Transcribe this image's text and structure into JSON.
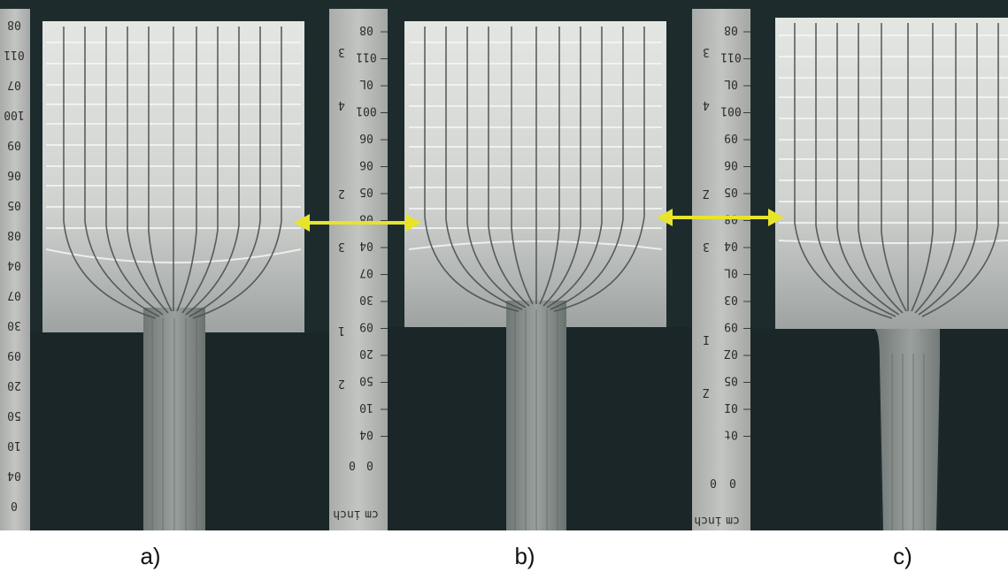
{
  "panels": [
    {
      "id": "a",
      "caption": "a)"
    },
    {
      "id": "b",
      "caption": "b)"
    },
    {
      "id": "c",
      "caption": "c)"
    }
  ],
  "rulers": {
    "left_edge": [
      "08",
      "011",
      "07",
      "100",
      "09",
      "06",
      "05",
      "08",
      "04",
      "07",
      "30",
      "09",
      "20",
      "50",
      "10",
      "04",
      "0"
    ],
    "middle": {
      "marks": [
        "08",
        "011",
        "0L",
        "001",
        "06",
        "06",
        "05",
        "08",
        "04",
        "07",
        "30",
        "09",
        "20",
        "50",
        "10",
        "04"
      ],
      "inch_marks": [
        "3",
        "4",
        "2",
        "3",
        "1",
        "2"
      ],
      "bottom_left": "0",
      "bottom_right": "0",
      "unit_left": "inch",
      "unit_right": "cm"
    },
    "right": {
      "marks": [
        "08",
        "011",
        "0L",
        "001",
        "09",
        "06",
        "05",
        "08",
        "04",
        "0L",
        "03",
        "09",
        "0Z",
        "05",
        "0I",
        "0t"
      ],
      "inch_marks": [
        "3",
        "4",
        "Z",
        "3",
        "I",
        "Z"
      ],
      "bottom_left": "0",
      "bottom_right": "0",
      "unit_left": "inch",
      "unit_right": "cm"
    }
  },
  "colors": {
    "background": "#1c2a2c",
    "metal": "#c9cbc8",
    "ruler": "#b7b9b6",
    "arrow": "#e6e22a"
  },
  "icons": {
    "arrow": "double-headed-arrow-icon"
  }
}
